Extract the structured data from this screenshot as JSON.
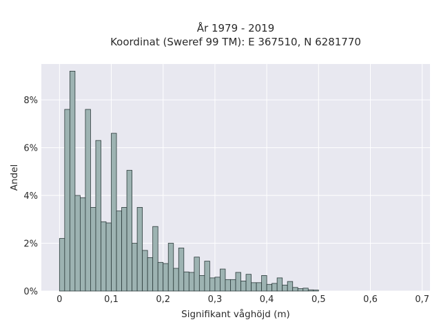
{
  "chart_data": {
    "type": "bar",
    "title_lines": [
      "År 1979 - 2019",
      "Koordinat (Sweref 99 TM): E 367510, N 6281770"
    ],
    "xlabel": "Signifikant våghöjd (m)",
    "ylabel": "Andel",
    "bin_width": 0.01,
    "bin_start": 0.0,
    "values_percent": [
      2.2,
      7.6,
      9.2,
      4.0,
      3.9,
      7.6,
      3.5,
      6.3,
      2.9,
      2.85,
      6.6,
      3.35,
      3.5,
      5.05,
      2.0,
      3.5,
      1.7,
      1.4,
      2.7,
      1.2,
      1.15,
      2.0,
      0.95,
      1.8,
      0.8,
      0.78,
      1.42,
      0.65,
      1.25,
      0.55,
      0.58,
      0.92,
      0.48,
      0.48,
      0.78,
      0.42,
      0.7,
      0.35,
      0.35,
      0.65,
      0.28,
      0.32,
      0.55,
      0.25,
      0.4,
      0.15,
      0.1,
      0.12,
      0.05,
      0.04
    ],
    "xlim": [
      -0.035,
      0.715
    ],
    "ylim": [
      0,
      9.5
    ],
    "x_ticks": [
      {
        "value": 0.0,
        "label": "0"
      },
      {
        "value": 0.1,
        "label": "0,1"
      },
      {
        "value": 0.2,
        "label": "0,2"
      },
      {
        "value": 0.3,
        "label": "0,3"
      },
      {
        "value": 0.4,
        "label": "0,4"
      },
      {
        "value": 0.5,
        "label": "0,5"
      },
      {
        "value": 0.6,
        "label": "0,6"
      },
      {
        "value": 0.7,
        "label": "0,7"
      }
    ],
    "y_ticks": [
      {
        "value": 0,
        "label": "0%"
      },
      {
        "value": 2,
        "label": "2%"
      },
      {
        "value": 4,
        "label": "4%"
      },
      {
        "value": 6,
        "label": "6%"
      },
      {
        "value": 8,
        "label": "8%"
      }
    ],
    "grid": true,
    "colors": {
      "bar_fill": "#9db3b2",
      "bar_stroke": "#2b3a3a",
      "plot_background": "#e8e8f0",
      "grid": "#ffffff"
    }
  }
}
